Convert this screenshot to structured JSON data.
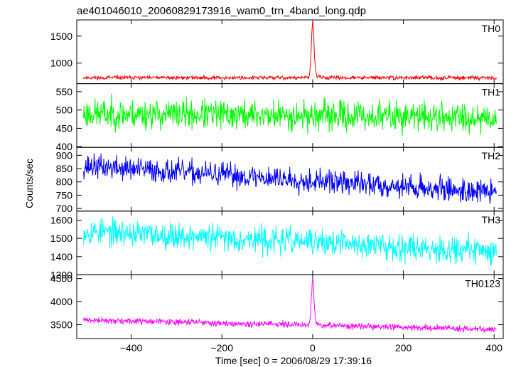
{
  "title": "ae401046010_20060829173916_wam0_trn_4band_long.qdp",
  "chart_data": {
    "type": "line",
    "title": "ae401046010_20060829173916_wam0_trn_4band_long.qdp",
    "xlabel": "Time [sec] 0 = 2006/08/29 17:39:16",
    "ylabel": "Counts/sec",
    "xlim": [
      -520,
      420
    ],
    "xticks": [
      -400,
      -200,
      0,
      200,
      400
    ],
    "xtick_labels": [
      "−400",
      "−200",
      "0",
      "200",
      "400"
    ],
    "x_range": [
      -505,
      405
    ],
    "panels": [
      {
        "name": "TH0",
        "color": "#ff0000",
        "ylim": [
          620,
          1800
        ],
        "yticks": [
          1000,
          1500
        ],
        "ytick_labels": [
          "1000",
          "1500"
        ],
        "baseline": 730,
        "noise": 22,
        "trend": 0,
        "burst": {
          "t0": 0,
          "peak": 1800,
          "width": 3
        },
        "seed": 11
      },
      {
        "name": "TH1",
        "color": "#00ff00",
        "ylim": [
          398,
          572
        ],
        "yticks": [
          400,
          450,
          500,
          550
        ],
        "ytick_labels": [
          "400",
          "450",
          "500",
          "550"
        ],
        "baseline": 490,
        "noise": 25,
        "trend": -10,
        "burst": null,
        "seed": 23
      },
      {
        "name": "TH2",
        "color": "#0000ff",
        "ylim": [
          690,
          930
        ],
        "yticks": [
          700,
          750,
          800,
          850,
          900
        ],
        "ytick_labels": [
          "700",
          "750",
          "800",
          "850",
          "900"
        ],
        "baseline": 860,
        "noise": 28,
        "trend": -100,
        "burst": null,
        "seed": 37
      },
      {
        "name": "TH3",
        "color": "#00ffff",
        "ylim": [
          1300,
          1650
        ],
        "yticks": [
          1300,
          1400,
          1500,
          1600
        ],
        "ytick_labels": [
          "1300",
          "1400",
          "1500",
          "1600"
        ],
        "baseline": 1540,
        "noise": 45,
        "trend": -110,
        "burst": null,
        "seed": 53
      },
      {
        "name": "TH0123",
        "color": "#ff00ff",
        "ylim": [
          3200,
          4580
        ],
        "yticks": [
          3500,
          4000,
          4500
        ],
        "ytick_labels": [
          "3500",
          "4000",
          "4500"
        ],
        "baseline": 3600,
        "noise": 40,
        "trend": -200,
        "burst": {
          "t0": 0,
          "peak": 4580,
          "width": 3
        },
        "seed": 71
      }
    ]
  }
}
